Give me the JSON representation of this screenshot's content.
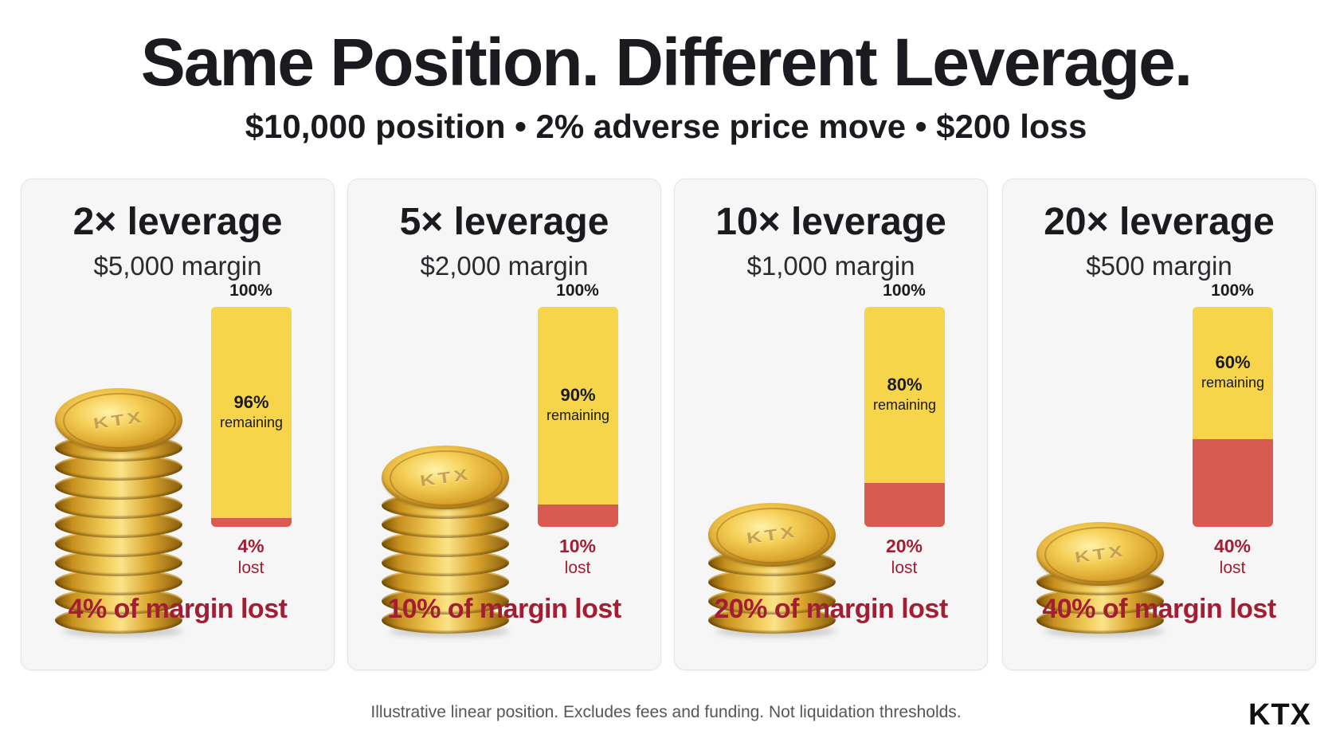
{
  "header": {
    "title": "Same Position. Different Leverage.",
    "subtitle": "$10,000 position • 2% adverse price move • $200 loss"
  },
  "coin_logo": "KTX",
  "cards": [
    {
      "title": "2× leverage",
      "margin": "$5,000 margin",
      "coins": 10,
      "bar_top": "100%",
      "remaining_pct": "96%",
      "remaining_word": "remaining",
      "remaining_fraction": 0.96,
      "lost_pct": "4%",
      "lost_word": "lost",
      "footer": "4% of margin lost"
    },
    {
      "title": "5× leverage",
      "margin": "$2,000 margin",
      "coins": 7,
      "bar_top": "100%",
      "remaining_pct": "90%",
      "remaining_word": "remaining",
      "remaining_fraction": 0.9,
      "lost_pct": "10%",
      "lost_word": "lost",
      "footer": "10% of margin lost"
    },
    {
      "title": "10× leverage",
      "margin": "$1,000 margin",
      "coins": 4,
      "bar_top": "100%",
      "remaining_pct": "80%",
      "remaining_word": "remaining",
      "remaining_fraction": 0.8,
      "lost_pct": "20%",
      "lost_word": "lost",
      "footer": "20% of margin lost"
    },
    {
      "title": "20× leverage",
      "margin": "$500 margin",
      "coins": 3,
      "bar_top": "100%",
      "remaining_pct": "60%",
      "remaining_word": "remaining",
      "remaining_fraction": 0.6,
      "lost_pct": "40%",
      "lost_word": "lost",
      "footer": "40% of margin lost"
    }
  ],
  "footer": {
    "disclaimer": "Illustrative linear position. Excludes fees and funding. Not liquidation thresholds.",
    "brand": "KTX"
  },
  "colors": {
    "remaining": "#f7d54a",
    "lost": "#d95a50",
    "lost_text": "#a31d33"
  }
}
